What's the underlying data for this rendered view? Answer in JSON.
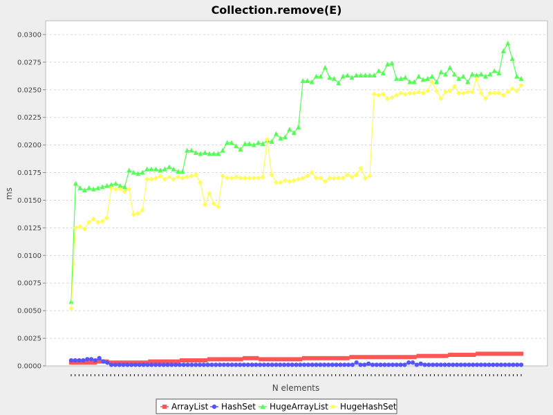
{
  "chart_data": {
    "type": "line",
    "title": "Collection.remove(E)",
    "xlabel": "N elements",
    "ylabel": "ms",
    "ylim": [
      0,
      0.03125
    ],
    "yticks": [
      "0.0000",
      "0.0025",
      "0.0050",
      "0.0075",
      "0.0100",
      "0.0125",
      "0.0150",
      "0.0175",
      "0.0200",
      "0.0225",
      "0.0250",
      "0.0275",
      "0.0300"
    ],
    "grid": true,
    "legend_position": "bottom",
    "x_tick_labels_visible": false,
    "series": [
      {
        "name": "ArrayList",
        "color": "#ff5555",
        "marker": "square",
        "values": [
          0.0003,
          0.0003,
          0.0003,
          0.0003,
          0.0003,
          0.0003,
          0.0003,
          0.0004,
          0.0004,
          0.0004,
          0.0003,
          0.0003,
          0.0003,
          0.0003,
          0.0003,
          0.0003,
          0.0003,
          0.0003,
          0.0003,
          0.0003,
          0.0004,
          0.0004,
          0.0004,
          0.0004,
          0.0004,
          0.0004,
          0.0004,
          0.0004,
          0.0005,
          0.0005,
          0.0005,
          0.0005,
          0.0005,
          0.0005,
          0.0005,
          0.0006,
          0.0006,
          0.0006,
          0.0006,
          0.0006,
          0.0006,
          0.0006,
          0.0006,
          0.0006,
          0.0007,
          0.0007,
          0.0007,
          0.0007,
          0.0006,
          0.0006,
          0.0006,
          0.0006,
          0.0006,
          0.0006,
          0.0006,
          0.0006,
          0.0006,
          0.0006,
          0.0006,
          0.0007,
          0.0007,
          0.0007,
          0.0007,
          0.0007,
          0.0007,
          0.0007,
          0.0007,
          0.0007,
          0.0007,
          0.0007,
          0.0007,
          0.0008,
          0.0008,
          0.0008,
          0.0008,
          0.0008,
          0.0008,
          0.0008,
          0.0008,
          0.0008,
          0.0008,
          0.0008,
          0.0008,
          0.0008,
          0.0008,
          0.0008,
          0.0008,
          0.0008,
          0.0009,
          0.0009,
          0.0009,
          0.0009,
          0.0009,
          0.0009,
          0.0009,
          0.0009,
          0.001,
          0.001,
          0.001,
          0.001,
          0.001,
          0.001,
          0.001,
          0.0011,
          0.0011,
          0.0011,
          0.0011,
          0.0011,
          0.0011,
          0.0011,
          0.0011,
          0.0011,
          0.0011,
          0.0011,
          0.0011
        ]
      },
      {
        "name": "HashSet",
        "color": "#5555ff",
        "marker": "circle",
        "values": [
          0.0005,
          0.0005,
          0.0005,
          0.0005,
          0.0006,
          0.0006,
          0.0005,
          0.0007,
          0.0004,
          0.0003,
          0.0001,
          0.0001,
          0.0001,
          0.0001,
          0.0001,
          0.0001,
          0.0001,
          0.0001,
          0.0001,
          0.0001,
          0.0001,
          0.0001,
          0.0001,
          0.0001,
          0.0001,
          0.0001,
          0.0001,
          0.0001,
          0.0001,
          0.0001,
          0.0001,
          0.0001,
          0.0001,
          0.0001,
          0.0001,
          0.0001,
          0.0001,
          0.0001,
          0.0001,
          0.0001,
          0.0001,
          0.0001,
          0.0001,
          0.0001,
          0.0001,
          0.0001,
          0.0001,
          0.0001,
          0.0001,
          0.0001,
          0.0001,
          0.0001,
          0.0001,
          0.0001,
          0.0001,
          0.0001,
          0.0001,
          0.0001,
          0.0001,
          0.0001,
          0.0001,
          0.0001,
          0.0001,
          0.0001,
          0.0001,
          0.0001,
          0.0001,
          0.0001,
          0.0001,
          0.0001,
          0.0001,
          0.0003,
          0.0001,
          0.0001,
          0.0002,
          0.0001,
          0.0001,
          0.0001,
          0.0001,
          0.0001,
          0.0001,
          0.0001,
          0.0001,
          0.0001,
          0.0003,
          0.0003,
          0.0001,
          0.0002,
          0.0001,
          0.0001,
          0.0001,
          0.0001,
          0.0001,
          0.0001,
          0.0001,
          0.0001,
          0.0001,
          0.0001,
          0.0001,
          0.0001,
          0.0001,
          0.0001,
          0.0001,
          0.0001,
          0.0001,
          0.0001,
          0.0001,
          0.0001,
          0.0001,
          0.0001,
          0.0001,
          0.0001,
          0.0001
        ]
      },
      {
        "name": "HugeArrayList",
        "color": "#55ff55",
        "marker": "triangle",
        "values": [
          0.0058,
          0.0165,
          0.0161,
          0.0159,
          0.0161,
          0.016,
          0.0161,
          0.0162,
          0.0163,
          0.0164,
          0.0165,
          0.0163,
          0.0162,
          0.0177,
          0.0175,
          0.0174,
          0.0175,
          0.0178,
          0.0178,
          0.0178,
          0.0177,
          0.0178,
          0.018,
          0.0178,
          0.0176,
          0.0176,
          0.0195,
          0.0195,
          0.0193,
          0.0192,
          0.0193,
          0.0192,
          0.0192,
          0.0192,
          0.0195,
          0.0202,
          0.0202,
          0.0199,
          0.0196,
          0.0201,
          0.0201,
          0.02,
          0.0202,
          0.0201,
          0.0204,
          0.0203,
          0.021,
          0.0206,
          0.0207,
          0.0214,
          0.0211,
          0.0216,
          0.0258,
          0.0258,
          0.0257,
          0.0262,
          0.0262,
          0.027,
          0.0261,
          0.026,
          0.0256,
          0.0262,
          0.0263,
          0.0261,
          0.0263,
          0.0263,
          0.0263,
          0.0263,
          0.0263,
          0.0267,
          0.0265,
          0.0273,
          0.0274,
          0.026,
          0.026,
          0.0261,
          0.0257,
          0.0257,
          0.0262,
          0.0259,
          0.026,
          0.0262,
          0.0257,
          0.0266,
          0.0264,
          0.027,
          0.0264,
          0.026,
          0.0262,
          0.0257,
          0.0264,
          0.0263,
          0.0264,
          0.0262,
          0.0264,
          0.0267,
          0.0265,
          0.0285,
          0.0292,
          0.0278,
          0.0262,
          0.026
        ]
      },
      {
        "name": "HugeHashSet",
        "color": "#ffff55",
        "marker": "diamond",
        "values": [
          0.0052,
          0.0125,
          0.0126,
          0.0124,
          0.013,
          0.0133,
          0.013,
          0.0131,
          0.0134,
          0.0161,
          0.016,
          0.016,
          0.0158,
          0.016,
          0.0137,
          0.0138,
          0.0141,
          0.0169,
          0.0169,
          0.017,
          0.0172,
          0.0169,
          0.0171,
          0.0169,
          0.0171,
          0.017,
          0.0171,
          0.0172,
          0.0173,
          0.0166,
          0.0146,
          0.0156,
          0.0147,
          0.0144,
          0.0172,
          0.017,
          0.017,
          0.0171,
          0.017,
          0.017,
          0.017,
          0.017,
          0.017,
          0.0171,
          0.0205,
          0.0173,
          0.0166,
          0.0166,
          0.0168,
          0.0167,
          0.0168,
          0.0169,
          0.017,
          0.0172,
          0.0175,
          0.017,
          0.017,
          0.0167,
          0.017,
          0.017,
          0.017,
          0.017,
          0.0173,
          0.0171,
          0.0173,
          0.0179,
          0.017,
          0.0172,
          0.0246,
          0.0245,
          0.0246,
          0.0242,
          0.0243,
          0.0245,
          0.0247,
          0.0246,
          0.0247,
          0.0247,
          0.0248,
          0.0247,
          0.0249,
          0.0257,
          0.0249,
          0.0242,
          0.0248,
          0.0249,
          0.0253,
          0.0247,
          0.0247,
          0.0248,
          0.0248,
          0.026,
          0.0247,
          0.0242,
          0.0247,
          0.0247,
          0.0247,
          0.0245,
          0.0248,
          0.0251,
          0.0249,
          0.0254
        ]
      }
    ]
  }
}
